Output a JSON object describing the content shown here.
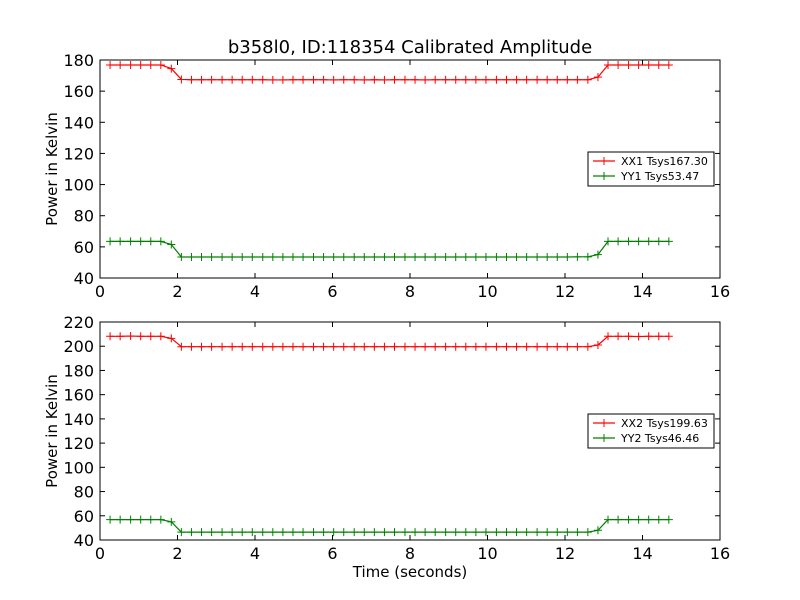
{
  "figure": {
    "title": "b358l0, ID:118354 Calibrated Amplitude"
  },
  "colors": {
    "red": "#ff0000",
    "green": "#008000",
    "axes": "#000000",
    "background": "#ffffff"
  },
  "chart_data": [
    {
      "type": "line",
      "title": "b358l0, ID:118354 Calibrated Amplitude",
      "xlabel": "",
      "ylabel": "Power in Kelvin",
      "xlim": [
        0,
        16
      ],
      "ylim": [
        40,
        180
      ],
      "xticks": [
        0,
        2,
        4,
        6,
        8,
        10,
        12,
        14,
        16
      ],
      "yticks": [
        40,
        60,
        80,
        100,
        120,
        140,
        160,
        180
      ],
      "xtick_labels": [
        "0",
        "2",
        "4",
        "6",
        "8",
        "10",
        "12",
        "14",
        "16"
      ],
      "ytick_labels": [
        "40",
        "60",
        "80",
        "100",
        "120",
        "140",
        "160",
        "180"
      ],
      "grid": false,
      "legend_position": "center-right",
      "marker": "plus",
      "series": [
        {
          "name": "XX1 Tsys167.30",
          "color": "#ff0000",
          "x": [
            0.26,
            0.52,
            0.79,
            1.05,
            1.31,
            1.57,
            1.84,
            2.1,
            2.36,
            2.62,
            2.88,
            3.15,
            3.41,
            3.67,
            3.93,
            4.2,
            4.46,
            4.72,
            4.98,
            5.24,
            5.51,
            5.77,
            6.03,
            6.29,
            6.56,
            6.82,
            7.08,
            7.34,
            7.6,
            7.87,
            8.13,
            8.39,
            8.65,
            8.92,
            9.18,
            9.44,
            9.7,
            9.96,
            10.23,
            10.49,
            10.75,
            11.01,
            11.28,
            11.54,
            11.8,
            12.06,
            12.32,
            12.59,
            12.85,
            13.11,
            13.37,
            13.64,
            13.9,
            14.16,
            14.42,
            14.68
          ],
          "y": [
            176.8,
            176.8,
            176.8,
            176.8,
            176.8,
            176.8,
            174.5,
            167.5,
            167.3,
            167.3,
            167.3,
            167.3,
            167.3,
            167.3,
            167.3,
            167.3,
            167.2,
            167.2,
            167.3,
            167.3,
            167.3,
            167.3,
            167.2,
            167.3,
            167.3,
            167.2,
            167.3,
            167.2,
            167.3,
            167.3,
            167.3,
            167.2,
            167.3,
            167.3,
            167.3,
            167.3,
            167.3,
            167.3,
            167.3,
            167.3,
            167.3,
            167.3,
            167.3,
            167.3,
            167.3,
            167.3,
            167.3,
            167.3,
            169.0,
            176.8,
            176.8,
            176.8,
            176.8,
            176.8,
            176.8,
            176.8
          ]
        },
        {
          "name": "YY1 Tsys53.47",
          "color": "#008000",
          "x": [
            0.26,
            0.52,
            0.79,
            1.05,
            1.31,
            1.57,
            1.84,
            2.1,
            2.36,
            2.62,
            2.88,
            3.15,
            3.41,
            3.67,
            3.93,
            4.2,
            4.46,
            4.72,
            4.98,
            5.24,
            5.51,
            5.77,
            6.03,
            6.29,
            6.56,
            6.82,
            7.08,
            7.34,
            7.6,
            7.87,
            8.13,
            8.39,
            8.65,
            8.92,
            9.18,
            9.44,
            9.7,
            9.96,
            10.23,
            10.49,
            10.75,
            11.01,
            11.28,
            11.54,
            11.8,
            12.06,
            12.32,
            12.59,
            12.85,
            13.11,
            13.37,
            13.64,
            13.9,
            14.16,
            14.42,
            14.68
          ],
          "y": [
            63.5,
            63.5,
            63.5,
            63.5,
            63.5,
            63.5,
            61.5,
            53.5,
            53.5,
            53.5,
            53.5,
            53.5,
            53.5,
            53.5,
            53.5,
            53.5,
            53.5,
            53.5,
            53.5,
            53.5,
            53.5,
            53.5,
            53.5,
            53.5,
            53.5,
            53.5,
            53.5,
            53.5,
            53.5,
            53.5,
            53.5,
            53.5,
            53.5,
            53.5,
            53.5,
            53.5,
            53.5,
            53.5,
            53.5,
            53.5,
            53.5,
            53.5,
            53.5,
            53.5,
            53.5,
            53.5,
            53.6,
            53.6,
            55.0,
            63.5,
            63.5,
            63.5,
            63.5,
            63.5,
            63.5,
            63.5
          ]
        }
      ]
    },
    {
      "type": "line",
      "title": "",
      "xlabel": "Time (seconds)",
      "ylabel": "Power in Kelvin",
      "xlim": [
        0,
        16
      ],
      "ylim": [
        40,
        220
      ],
      "xticks": [
        0,
        2,
        4,
        6,
        8,
        10,
        12,
        14,
        16
      ],
      "yticks": [
        40,
        60,
        80,
        100,
        120,
        140,
        160,
        180,
        200,
        220
      ],
      "xtick_labels": [
        "0",
        "2",
        "4",
        "6",
        "8",
        "10",
        "12",
        "14",
        "16"
      ],
      "ytick_labels": [
        "40",
        "60",
        "80",
        "100",
        "120",
        "140",
        "160",
        "180",
        "200",
        "220"
      ],
      "grid": false,
      "legend_position": "center-right",
      "marker": "plus",
      "series": [
        {
          "name": "XX2 Tsys199.63",
          "color": "#ff0000",
          "x": [
            0.26,
            0.52,
            0.79,
            1.05,
            1.31,
            1.57,
            1.84,
            2.1,
            2.36,
            2.62,
            2.88,
            3.15,
            3.41,
            3.67,
            3.93,
            4.2,
            4.46,
            4.72,
            4.98,
            5.24,
            5.51,
            5.77,
            6.03,
            6.29,
            6.56,
            6.82,
            7.08,
            7.34,
            7.6,
            7.87,
            8.13,
            8.39,
            8.65,
            8.92,
            9.18,
            9.44,
            9.7,
            9.96,
            10.23,
            10.49,
            10.75,
            11.01,
            11.28,
            11.54,
            11.8,
            12.06,
            12.32,
            12.59,
            12.85,
            13.11,
            13.37,
            13.64,
            13.9,
            14.16,
            14.42,
            14.68
          ],
          "y": [
            208.2,
            208.2,
            208.4,
            208.2,
            208.2,
            208.2,
            206.5,
            199.6,
            199.6,
            199.6,
            199.6,
            199.6,
            199.6,
            199.6,
            199.6,
            199.6,
            199.6,
            199.6,
            199.6,
            199.6,
            199.6,
            199.6,
            199.6,
            199.6,
            199.6,
            199.6,
            199.6,
            199.6,
            199.6,
            199.6,
            199.6,
            199.6,
            199.6,
            199.6,
            199.6,
            199.6,
            199.6,
            199.6,
            199.6,
            199.6,
            199.6,
            199.6,
            199.6,
            199.6,
            199.6,
            199.6,
            199.6,
            199.6,
            201.0,
            208.2,
            208.2,
            208.2,
            208.0,
            208.2,
            208.2,
            208.2
          ]
        },
        {
          "name": "YY2 Tsys46.46",
          "color": "#008000",
          "x": [
            0.26,
            0.52,
            0.79,
            1.05,
            1.31,
            1.57,
            1.84,
            2.1,
            2.36,
            2.62,
            2.88,
            3.15,
            3.41,
            3.67,
            3.93,
            4.2,
            4.46,
            4.72,
            4.98,
            5.24,
            5.51,
            5.77,
            6.03,
            6.29,
            6.56,
            6.82,
            7.08,
            7.34,
            7.6,
            7.87,
            8.13,
            8.39,
            8.65,
            8.92,
            9.18,
            9.44,
            9.7,
            9.96,
            10.23,
            10.49,
            10.75,
            11.01,
            11.28,
            11.54,
            11.8,
            12.06,
            12.32,
            12.59,
            12.85,
            13.11,
            13.37,
            13.64,
            13.9,
            14.16,
            14.42,
            14.68
          ],
          "y": [
            56.8,
            56.8,
            56.8,
            56.8,
            56.8,
            56.8,
            55.0,
            46.5,
            46.5,
            46.5,
            46.5,
            46.5,
            46.5,
            46.5,
            46.5,
            46.5,
            46.5,
            46.5,
            46.5,
            46.5,
            46.5,
            46.5,
            46.5,
            46.5,
            46.5,
            46.5,
            46.5,
            46.5,
            46.5,
            46.5,
            46.5,
            46.5,
            46.5,
            46.5,
            46.5,
            46.5,
            46.5,
            46.5,
            46.5,
            46.5,
            46.5,
            46.5,
            46.5,
            46.5,
            46.5,
            46.5,
            46.5,
            46.5,
            48.0,
            56.8,
            56.8,
            56.8,
            56.8,
            56.8,
            56.8,
            56.8
          ]
        }
      ]
    }
  ]
}
